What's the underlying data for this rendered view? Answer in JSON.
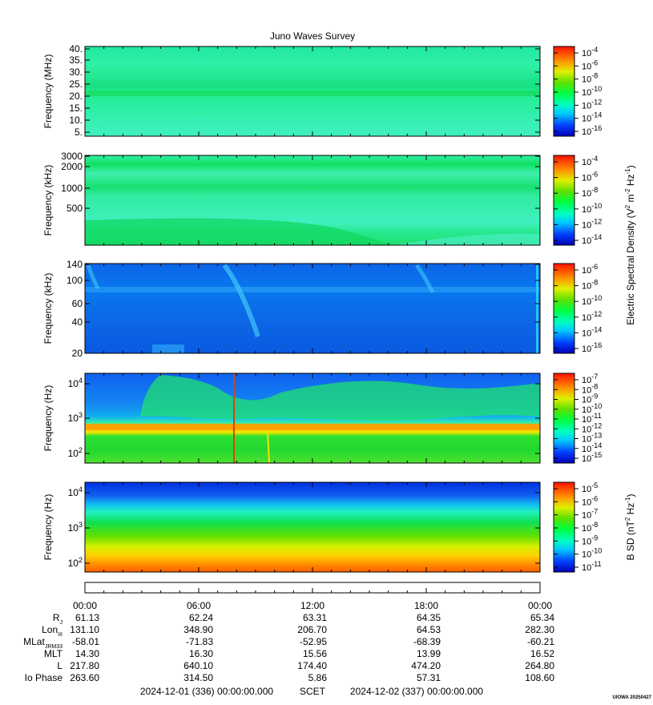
{
  "chart_data": {
    "type": "heatmap",
    "title": "Juno Waves Survey",
    "time_ticks": [
      "00:00",
      "06:00",
      "12:00",
      "18:00",
      "00:00"
    ],
    "panels": [
      {
        "ylabel": "Frequency (MHz)",
        "yscale": "linear",
        "yticks": [
          "40.",
          "35.",
          "30.",
          "25.",
          "20.",
          "15.",
          "10.",
          "5."
        ],
        "cb_ticks": [
          {
            "base": "10",
            "exp": "-4"
          },
          {
            "base": "10",
            "exp": "-6"
          },
          {
            "base": "10",
            "exp": "-8"
          },
          {
            "base": "10",
            "exp": "-10"
          },
          {
            "base": "10",
            "exp": "-12"
          },
          {
            "base": "10",
            "exp": "-14"
          },
          {
            "base": "10",
            "exp": "-16"
          }
        ]
      },
      {
        "ylabel": "Frequency (kHz)",
        "yscale": "log",
        "yticks": [
          "3000",
          "2000",
          "1000",
          "500"
        ],
        "cb_ticks": [
          {
            "base": "10",
            "exp": "-4"
          },
          {
            "base": "10",
            "exp": "-6"
          },
          {
            "base": "10",
            "exp": "-8"
          },
          {
            "base": "10",
            "exp": "-10"
          },
          {
            "base": "10",
            "exp": "-12"
          },
          {
            "base": "10",
            "exp": "-14"
          }
        ]
      },
      {
        "ylabel": "Frequency (kHz)",
        "yscale": "log",
        "yticks": [
          "140",
          "100",
          "60",
          "40",
          "20"
        ],
        "cb_ticks": [
          {
            "base": "10",
            "exp": "-6"
          },
          {
            "base": "10",
            "exp": "-8"
          },
          {
            "base": "10",
            "exp": "-10"
          },
          {
            "base": "10",
            "exp": "-12"
          },
          {
            "base": "10",
            "exp": "-14"
          },
          {
            "base": "10",
            "exp": "-16"
          }
        ]
      },
      {
        "ylabel": "Frequency (Hz)",
        "yscale": "log",
        "yticks": [
          {
            "base": "10",
            "exp": "4"
          },
          {
            "base": "10",
            "exp": "3"
          },
          {
            "base": "10",
            "exp": "2"
          }
        ],
        "cb_ticks": [
          {
            "base": "10",
            "exp": "-7"
          },
          {
            "base": "10",
            "exp": "-8"
          },
          {
            "base": "10",
            "exp": "-9"
          },
          {
            "base": "10",
            "exp": "-10"
          },
          {
            "base": "10",
            "exp": "-11"
          },
          {
            "base": "10",
            "exp": "-12"
          },
          {
            "base": "10",
            "exp": "-13"
          },
          {
            "base": "10",
            "exp": "-14"
          },
          {
            "base": "10",
            "exp": "-15"
          }
        ]
      },
      {
        "ylabel": "Frequency (Hz)",
        "yscale": "log",
        "yticks": [
          {
            "base": "10",
            "exp": "4"
          },
          {
            "base": "10",
            "exp": "3"
          },
          {
            "base": "10",
            "exp": "2"
          }
        ],
        "cb_ticks": [
          {
            "base": "10",
            "exp": "-5"
          },
          {
            "base": "10",
            "exp": "-6"
          },
          {
            "base": "10",
            "exp": "-7"
          },
          {
            "base": "10",
            "exp": "-8"
          },
          {
            "base": "10",
            "exp": "-9"
          },
          {
            "base": "10",
            "exp": "-10"
          },
          {
            "base": "10",
            "exp": "-11"
          }
        ]
      }
    ],
    "e_cb_label": {
      "a": "Electric Spectral Density (V",
      "e1": "2",
      "b": " m",
      "e2": "-2",
      "c": " Hz",
      "e3": "-1",
      "d": ")"
    },
    "b_cb_label": {
      "a": "B SD (nT",
      "e1": "2",
      "b": " Hz",
      "e2": "-1",
      "c": ")"
    },
    "ephemeris": [
      {
        "label": "R",
        "sub": "J",
        "values": [
          "61.13",
          "62.24",
          "63.31",
          "64.35",
          "65.34"
        ]
      },
      {
        "label": "Lon",
        "sub": "III",
        "values": [
          "131.10",
          "348.90",
          "206.70",
          "64.53",
          "282.30"
        ]
      },
      {
        "label": "MLat",
        "sub": "JRM33",
        "values": [
          "-58.01",
          "-71.83",
          "-52.95",
          "-68.39",
          "-60.21"
        ]
      },
      {
        "label": "MLT",
        "sub": "",
        "values": [
          "14.30",
          "16.30",
          "15.56",
          "13.99",
          "16.52"
        ]
      },
      {
        "label": "L",
        "sub": "",
        "values": [
          "217.80",
          "640.10",
          "174.40",
          "474.20",
          "264.80"
        ]
      },
      {
        "label": "Io Phase",
        "sub": "",
        "values": [
          "263.60",
          "314.50",
          "5.86",
          "57.31",
          "108.60"
        ]
      }
    ],
    "footer_left": "2024-12-01 (336) 00:00:00.000",
    "footer_mid": "SCET",
    "footer_right": "2024-12-02 (337) 00:00:00.000",
    "footer_tag": "UIOWA 20250427"
  }
}
